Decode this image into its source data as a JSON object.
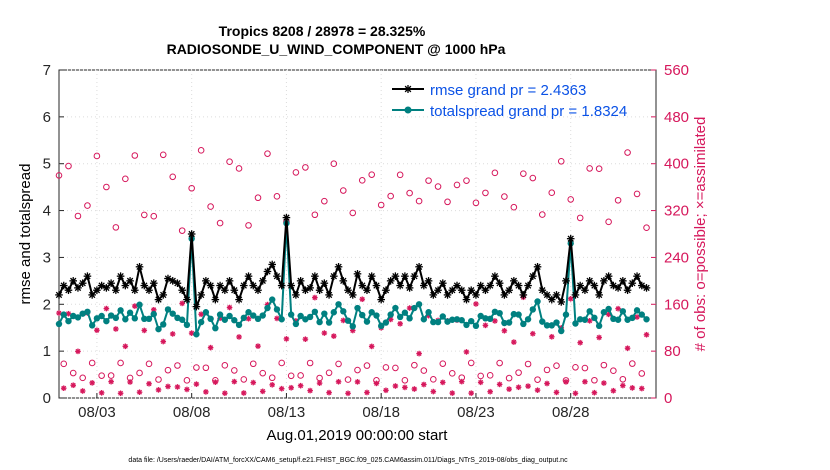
{
  "chart_data": {
    "type": "line",
    "title": "Tropics 8208 / 28978 = 28.325%",
    "subtitle": "RADIOSONDE_U_WIND_COMPONENT @ 1000 hPa",
    "xlabel": "Aug.01,2019 00:00:00 start",
    "ylabel_left": "rmse and totalspread",
    "ylabel_right": "# of obs: o=possible; ×=assimilated",
    "footer": "data file: /Users/raeder/DAI/ATM_forcXX/CAM6_setup/f.e21.FHIST_BGC.f09_025.CAM6assim.011/Diags_NTrS_2019-08/obs_diag_output.nc",
    "xlim": [
      1,
      32.5
    ],
    "ylim_left": [
      0,
      7
    ],
    "ylim_right": [
      0,
      560
    ],
    "x_tick_labels": [
      "08/03",
      "08/08",
      "08/13",
      "08/18",
      "08/23",
      "08/28"
    ],
    "x_tick_values": [
      3,
      8,
      13,
      18,
      23,
      28
    ],
    "y_left_ticks": [
      "0",
      "1",
      "2",
      "3",
      "4",
      "5",
      "6",
      "7"
    ],
    "y_right_ticks": [
      "0",
      "80",
      "160",
      "240",
      "320",
      "400",
      "480",
      "560"
    ],
    "colors": {
      "rmse": "#000000",
      "spread": "#008080",
      "obs": "#d6185c",
      "legend_text": "#0b52e6",
      "right_axis": "#d6185c"
    },
    "legend": {
      "position": "top-right",
      "rmse_label": "rmse grand pr = 2.4363",
      "spread_label": "totalspread grand pr = 1.8324"
    },
    "series": [
      {
        "name": "rmse",
        "marker": "asterisk",
        "x": [
          1.0,
          1.25,
          1.5,
          1.75,
          2.0,
          2.25,
          2.5,
          2.75,
          3.0,
          3.25,
          3.5,
          3.75,
          4.0,
          4.25,
          4.5,
          4.75,
          5.0,
          5.25,
          5.5,
          5.75,
          6.0,
          6.25,
          6.5,
          6.75,
          7.0,
          7.25,
          7.5,
          7.75,
          8.0,
          8.25,
          8.5,
          8.75,
          9.0,
          9.25,
          9.5,
          9.75,
          10.0,
          10.25,
          10.5,
          10.75,
          11.0,
          11.25,
          11.5,
          11.75,
          12.0,
          12.25,
          12.5,
          12.75,
          13.0,
          13.25,
          13.5,
          13.75,
          14.0,
          14.25,
          14.5,
          14.75,
          15.0,
          15.25,
          15.5,
          15.75,
          16.0,
          16.25,
          16.5,
          16.75,
          17.0,
          17.25,
          17.5,
          17.75,
          18.0,
          18.25,
          18.5,
          18.75,
          19.0,
          19.25,
          19.5,
          19.75,
          20.0,
          20.25,
          20.5,
          20.75,
          21.0,
          21.25,
          21.5,
          21.75,
          22.0,
          22.25,
          22.5,
          22.75,
          23.0,
          23.25,
          23.5,
          23.75,
          24.0,
          24.25,
          24.5,
          24.75,
          25.0,
          25.25,
          25.5,
          25.75,
          26.0,
          26.25,
          26.5,
          26.75,
          27.0,
          27.25,
          27.5,
          27.75,
          28.0,
          28.25,
          28.5,
          28.75,
          29.0,
          29.25,
          29.5,
          29.75,
          30.0,
          30.25,
          30.5,
          30.75,
          31.0,
          31.25,
          31.5,
          31.75,
          32.0
        ],
        "values": [
          2.2,
          2.4,
          2.3,
          2.5,
          2.35,
          2.45,
          2.6,
          2.2,
          2.3,
          2.4,
          2.35,
          2.45,
          2.3,
          2.6,
          2.4,
          2.5,
          2.3,
          2.8,
          2.4,
          2.3,
          2.45,
          2.1,
          2.2,
          2.55,
          2.5,
          2.45,
          2.3,
          2.1,
          3.5,
          1.95,
          2.2,
          2.5,
          2.4,
          2.1,
          2.4,
          2.3,
          2.5,
          2.3,
          2.1,
          2.4,
          2.6,
          2.4,
          2.3,
          2.5,
          2.7,
          2.85,
          2.6,
          2.4,
          3.85,
          2.4,
          2.2,
          2.5,
          2.3,
          2.35,
          2.6,
          2.3,
          2.45,
          2.2,
          2.6,
          2.8,
          2.5,
          2.3,
          2.2,
          2.65,
          2.4,
          2.3,
          2.6,
          2.4,
          2.1,
          2.3,
          2.5,
          2.6,
          2.4,
          2.6,
          2.35,
          2.6,
          2.8,
          2.4,
          2.5,
          2.2,
          2.3,
          2.45,
          2.2,
          2.3,
          2.4,
          2.3,
          2.1,
          2.3,
          2.2,
          2.4,
          2.3,
          2.4,
          2.6,
          2.45,
          2.2,
          2.3,
          2.5,
          2.4,
          2.2,
          2.4,
          2.6,
          2.8,
          2.3,
          2.2,
          2.1,
          2.2,
          2.05,
          2.5,
          3.4,
          2.2,
          2.4,
          2.3,
          2.5,
          2.4,
          2.2,
          2.5,
          2.6,
          2.4,
          2.35,
          2.5,
          2.3,
          2.45,
          2.6,
          2.4,
          2.35
        ],
        "values_note": "approximate readings"
      }
    ]
  }
}
